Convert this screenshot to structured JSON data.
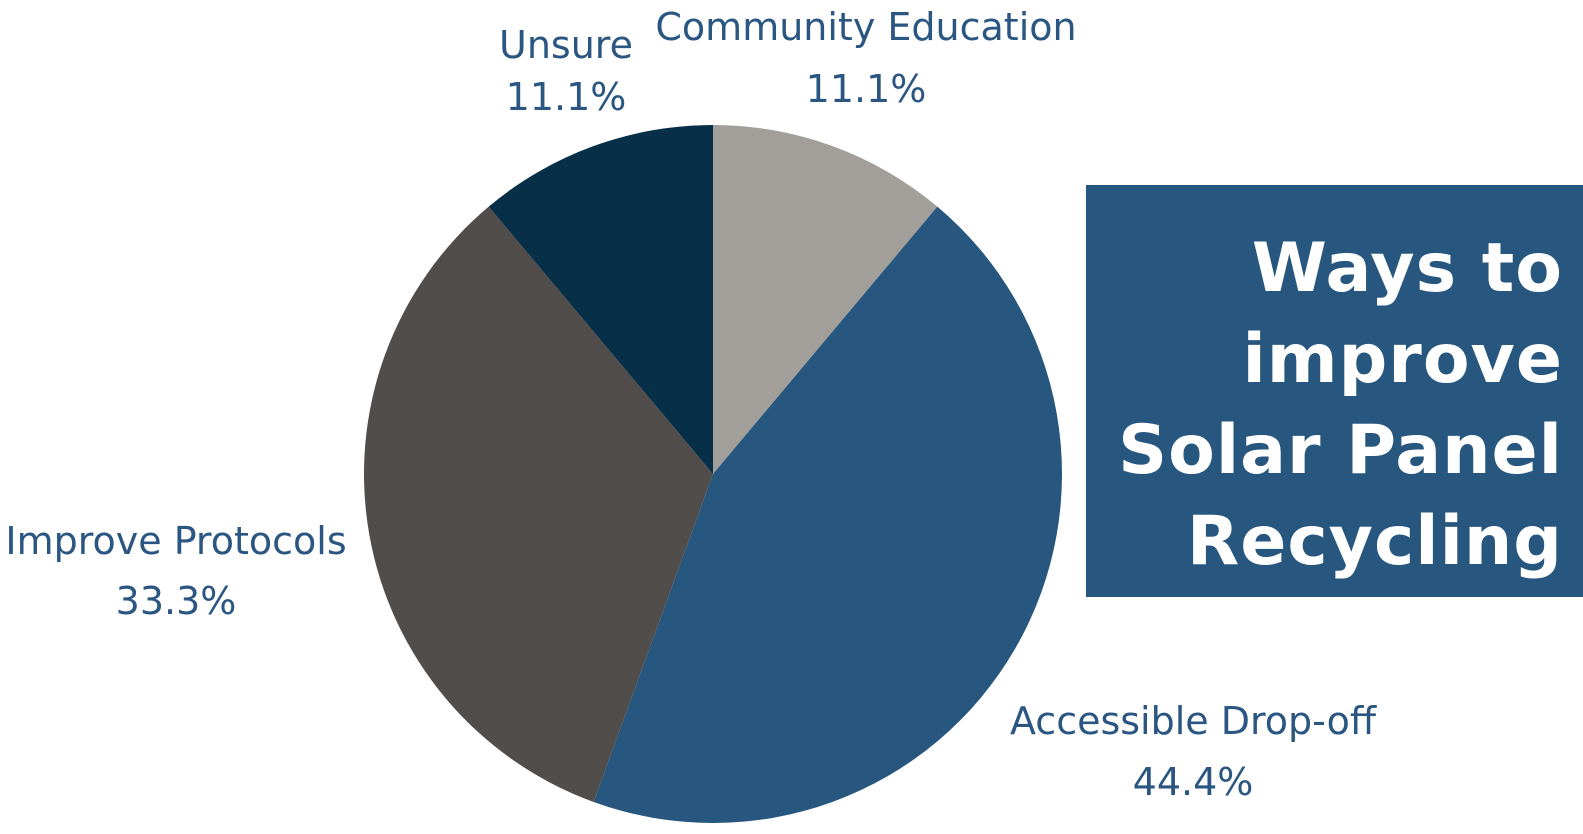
{
  "chart_data": {
    "type": "pie",
    "title": "Ways to improve Solar Panel Recycling",
    "title_lines": [
      "Ways to",
      "improve",
      "Solar Panel",
      "Recycling"
    ],
    "start_angle": "12 o'clock, clockwise",
    "slices": [
      {
        "label": "Community Education",
        "value": 11.1,
        "value_label": "11.1%",
        "color": "#a29f9b"
      },
      {
        "label": "Accessible Drop-off",
        "value": 44.4,
        "value_label": "44.4%",
        "color": "#27567f"
      },
      {
        "label": "Improve Protocols",
        "value": 33.3,
        "value_label": "33.3%",
        "color": "#514d4a"
      },
      {
        "label": "Unsure",
        "value": 11.1,
        "value_label": "11.1%",
        "color": "#082f48"
      }
    ],
    "colors": {
      "label_text": "#2a5681",
      "title_box": "#27567f",
      "title_text": "#ffffff"
    }
  }
}
